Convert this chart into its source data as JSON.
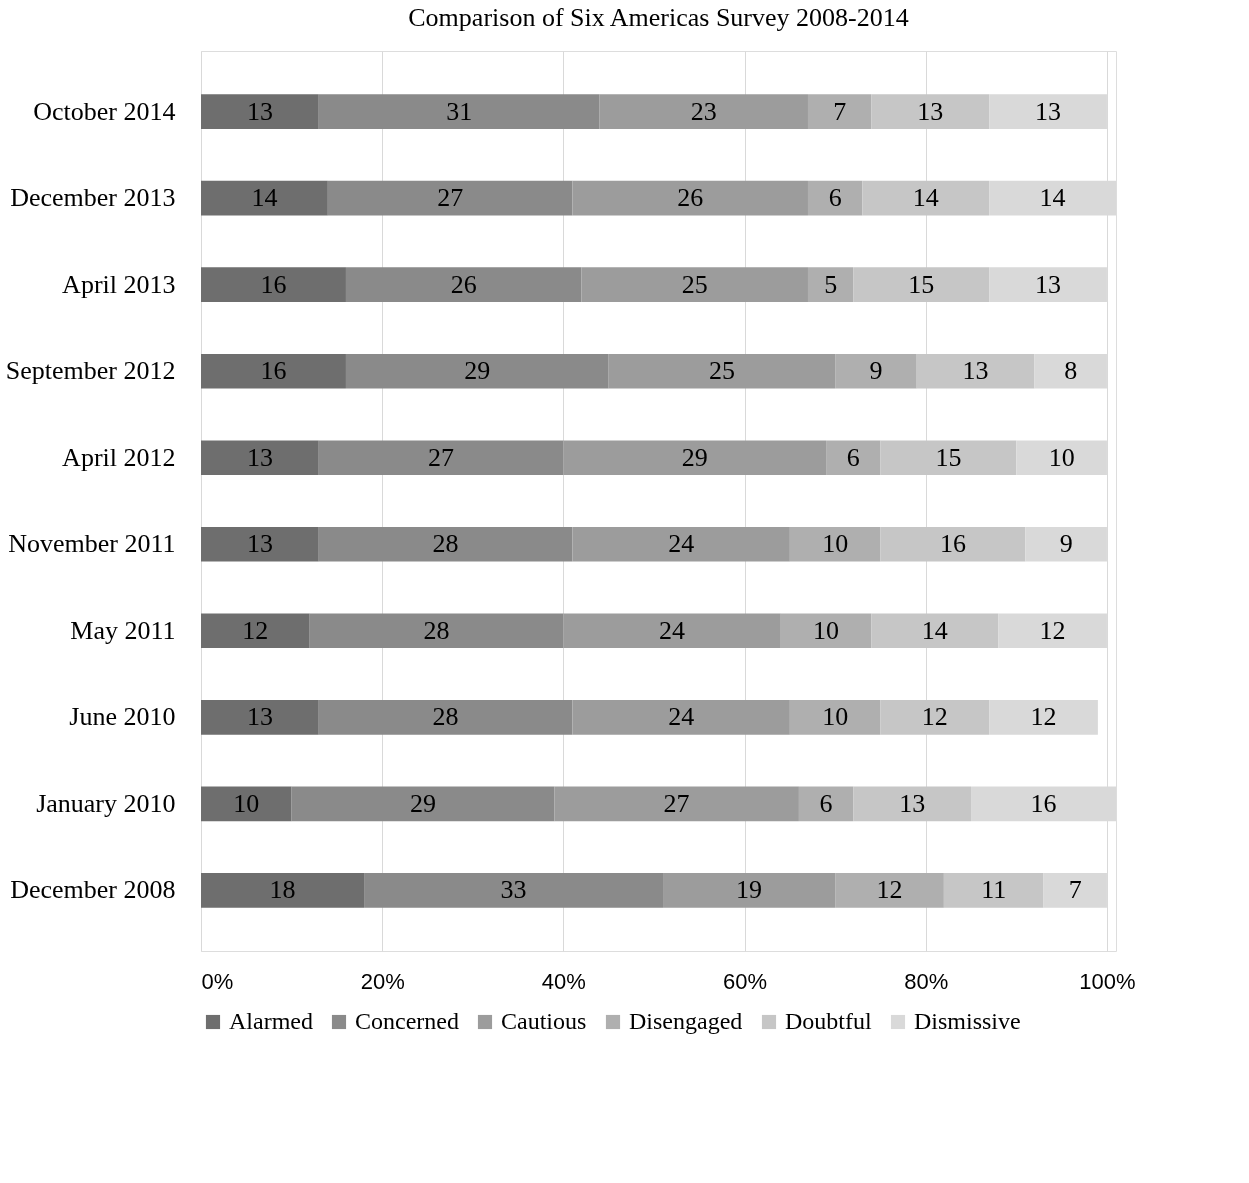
{
  "chart_data": {
    "type": "bar",
    "orientation": "horizontal",
    "stacked": true,
    "title": "Comparison of Six Americas Survey 2008-2014",
    "categories": [
      "October 2014",
      "December 2013",
      "April 2013",
      "September 2012",
      "April 2012",
      "November 2011",
      "May 2011",
      "June 2010",
      "January 2010",
      "December 2008"
    ],
    "series": [
      {
        "name": "Alarmed",
        "color": "#6e6e6e",
        "values": [
          13,
          14,
          16,
          16,
          13,
          13,
          12,
          13,
          10,
          18
        ]
      },
      {
        "name": "Concerned",
        "color": "#8a8a8a",
        "values": [
          31,
          27,
          26,
          29,
          27,
          28,
          28,
          28,
          29,
          33
        ]
      },
      {
        "name": "Cautious",
        "color": "#9c9c9c",
        "values": [
          23,
          26,
          25,
          25,
          29,
          24,
          24,
          24,
          27,
          19
        ]
      },
      {
        "name": "Disengaged",
        "color": "#afafaf",
        "values": [
          7,
          6,
          5,
          9,
          6,
          10,
          10,
          10,
          6,
          12
        ]
      },
      {
        "name": "Doubtful",
        "color": "#c6c6c6",
        "values": [
          13,
          14,
          15,
          13,
          15,
          16,
          14,
          12,
          13,
          11
        ]
      },
      {
        "name": "Dismissive",
        "color": "#d9d9d9",
        "values": [
          13,
          14,
          13,
          8,
          10,
          9,
          12,
          12,
          16,
          7
        ]
      }
    ],
    "xlim": [
      0,
      101
    ],
    "xticks": [
      {
        "value": 0,
        "label": "0%"
      },
      {
        "value": 20,
        "label": "20%"
      },
      {
        "value": 40,
        "label": "40%"
      },
      {
        "value": 60,
        "label": "60%"
      },
      {
        "value": 80,
        "label": "80%"
      },
      {
        "value": 100,
        "label": "100%"
      }
    ],
    "grid": "x",
    "legend": "bottom",
    "data_labels": true
  }
}
